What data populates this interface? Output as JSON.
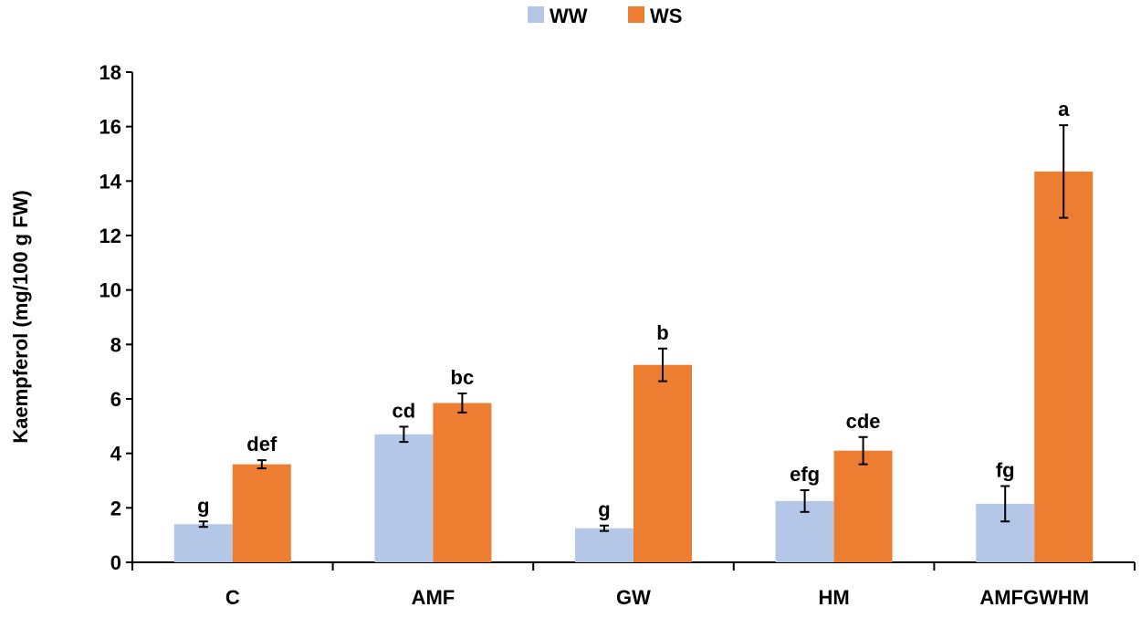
{
  "chart_data": {
    "type": "bar",
    "title": "",
    "xlabel": "",
    "ylabel": "Kaempferol (mg/100 g FW)",
    "ylim": [
      0,
      18
    ],
    "yticks": [
      0,
      2,
      4,
      6,
      8,
      10,
      12,
      14,
      16,
      18
    ],
    "grid": false,
    "legend_position": "top-center",
    "categories": [
      "C",
      "AMF",
      "GW",
      "HM",
      "AMFGWHM"
    ],
    "series": [
      {
        "name": "WW",
        "color": "#B4C7E7",
        "values": [
          1.4,
          4.7,
          1.25,
          2.25,
          2.15
        ],
        "errors": [
          0.1,
          0.28,
          0.1,
          0.4,
          0.65
        ],
        "letters": [
          "g",
          "cd",
          "g",
          "efg",
          "fg"
        ]
      },
      {
        "name": "WS",
        "color": "#ED7D31",
        "values": [
          3.6,
          5.85,
          7.25,
          4.1,
          14.35
        ],
        "errors": [
          0.15,
          0.35,
          0.6,
          0.5,
          1.7
        ],
        "letters": [
          "def",
          "bc",
          "b",
          "cde",
          "a"
        ]
      }
    ]
  }
}
